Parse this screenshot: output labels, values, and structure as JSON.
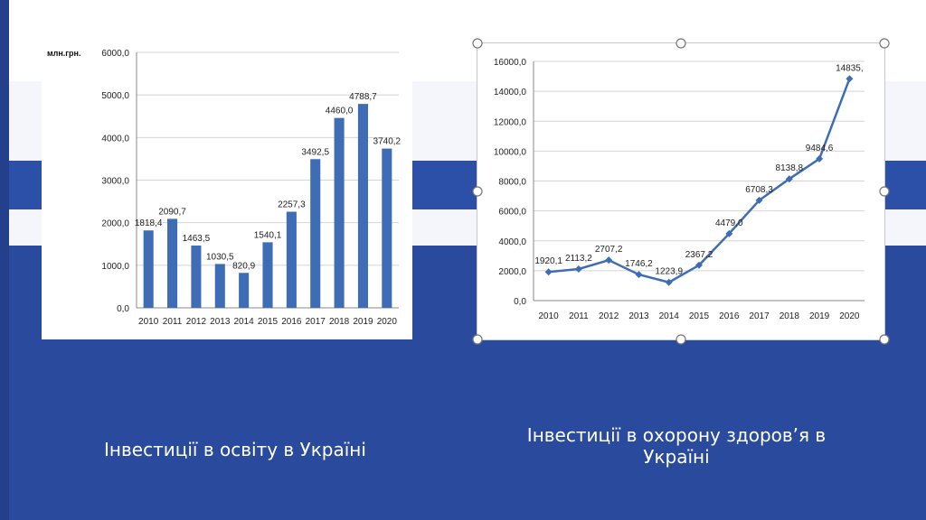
{
  "colors": {
    "background": "#2a4a9e",
    "series": "#3e6db5"
  },
  "captions": {
    "education": "Інвестиції в освіту в Україні",
    "health": "Інвестиції в охорону здоров’я в Україні"
  },
  "chart_data": [
    {
      "type": "bar",
      "unit_label": "млн.грн.",
      "categories": [
        "2010",
        "2011",
        "2012",
        "2013",
        "2014",
        "2015",
        "2016",
        "2017",
        "2018",
        "2019",
        "2020"
      ],
      "values": [
        1818.4,
        2090.7,
        1463.5,
        1030.5,
        820.9,
        1540.1,
        2257.3,
        3492.5,
        4460.0,
        4788.7,
        3740.2
      ],
      "data_labels": [
        "1818,4",
        "2090,7",
        "1463,5",
        "1030,5",
        "820,9",
        "1540,1",
        "2257,3",
        "3492,5",
        "4460,0",
        "4788,7",
        "3740,2"
      ],
      "y_ticks": [
        0,
        1000,
        2000,
        3000,
        4000,
        5000,
        6000
      ],
      "y_tick_labels": [
        "0,0",
        "1000,0",
        "2000,0",
        "3000,0",
        "4000,0",
        "5000,0",
        "6000,0"
      ],
      "ylim": [
        0,
        6000
      ],
      "grid": true,
      "color": "#3e6db5"
    },
    {
      "type": "line",
      "categories": [
        "2010",
        "2011",
        "2012",
        "2013",
        "2014",
        "2015",
        "2016",
        "2017",
        "2018",
        "2019",
        "2020"
      ],
      "values": [
        1920.1,
        2113.2,
        2707.2,
        1746.2,
        1223.9,
        2367.2,
        4479.0,
        6708.3,
        8138.8,
        9484.6,
        14835.0
      ],
      "data_labels": [
        "1920,1",
        "2113,2",
        "2707,2",
        "1746,2",
        "1223,9",
        "2367,2",
        "4479,0",
        "6708,3",
        "8138,8",
        "9484,6",
        "14835,"
      ],
      "y_ticks": [
        0,
        2000,
        4000,
        6000,
        8000,
        10000,
        12000,
        14000,
        16000
      ],
      "y_tick_labels": [
        "0,0",
        "2000,0",
        "4000,0",
        "6000,0",
        "8000,0",
        "10000,0",
        "12000,0",
        "14000,0",
        "16000,0"
      ],
      "ylim": [
        0,
        16000
      ],
      "grid": true,
      "color": "#3e6db5"
    }
  ]
}
